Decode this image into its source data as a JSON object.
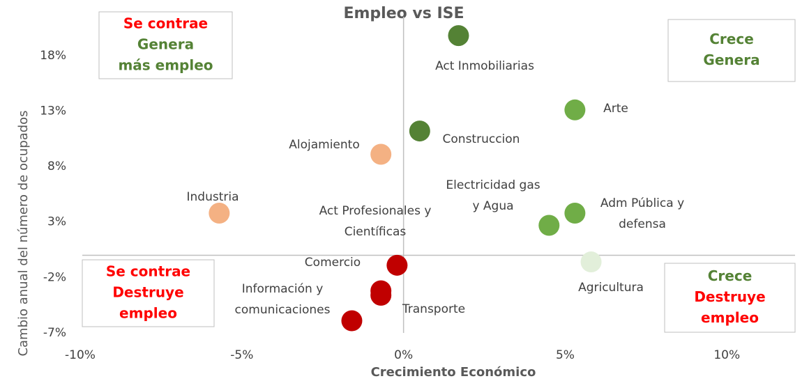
{
  "chart_data": {
    "type": "scatter",
    "title": "Empleo vs ISE",
    "x_label": "Crecimiento Económico",
    "y_label": "Cambio anual del número de ocupados",
    "xlim": [
      -10,
      12
    ],
    "ylim": [
      -7,
      21.5
    ],
    "xticks": [
      {
        "value": -10,
        "label": "-10%"
      },
      {
        "value": -5,
        "label": "-5%"
      },
      {
        "value": 0,
        "label": "0%"
      },
      {
        "value": 5,
        "label": "5%"
      },
      {
        "value": 10,
        "label": "10%"
      }
    ],
    "yticks": [
      {
        "value": -7,
        "label": "-7%"
      },
      {
        "value": -2,
        "label": "-2%"
      },
      {
        "value": 3,
        "label": "3%"
      },
      {
        "value": 8,
        "label": "8%"
      },
      {
        "value": 13,
        "label": "13%"
      },
      {
        "value": 18,
        "label": "18%"
      }
    ],
    "points": [
      {
        "label": [
          "Act Inmobiliarias"
        ],
        "x": 1.7,
        "y": 19.8,
        "color": "#548235"
      },
      {
        "label": [
          "Arte"
        ],
        "x": 5.3,
        "y": 13.1,
        "color": "#70ad47"
      },
      {
        "label": [
          "Construccion"
        ],
        "x": 0.5,
        "y": 11.2,
        "color": "#548235"
      },
      {
        "label": [
          "Alojamiento"
        ],
        "x": -0.7,
        "y": 9.1,
        "color": "#f4b183"
      },
      {
        "label": [
          "Industria"
        ],
        "x": -5.7,
        "y": 3.8,
        "color": "#f4b183"
      },
      {
        "label": [
          "Electricidad gas",
          "y Agua"
        ],
        "x": 4.5,
        "y": 2.7,
        "color": "#70ad47"
      },
      {
        "label": [
          "Act Profesionales y",
          "Científicas"
        ],
        "x": -0.7,
        "y": -3.2,
        "color": "#c00000"
      },
      {
        "label": [
          "Adm Pública y",
          "defensa"
        ],
        "x": 5.3,
        "y": 3.8,
        "color": "#70ad47"
      },
      {
        "label": [
          "Agricultura"
        ],
        "x": 5.8,
        "y": -0.6,
        "color": "#e2efda"
      },
      {
        "label": [
          "Comercio"
        ],
        "x": -0.2,
        "y": -0.9,
        "color": "#c00000"
      },
      {
        "label": [
          "Información y",
          "comunicaciones"
        ],
        "x": -1.6,
        "y": -5.9,
        "color": "#c00000"
      },
      {
        "label": [
          "Transporte"
        ],
        "x": -0.7,
        "y": -3.6,
        "color": "#c00000"
      }
    ],
    "quadrants": [
      {
        "lines": [
          {
            "text": "Se contrae",
            "color": "#ff0000"
          },
          {
            "text": "Genera",
            "color": "#548235"
          },
          {
            "text": "más empleo",
            "color": "#548235"
          }
        ]
      },
      {
        "lines": [
          {
            "text": "Crece",
            "color": "#548235"
          },
          {
            "text": "Genera",
            "color": "#548235"
          }
        ]
      },
      {
        "lines": [
          {
            "text": "Se contrae",
            "color": "#ff0000"
          },
          {
            "text": "Destruye",
            "color": "#ff0000"
          },
          {
            "text": "empleo",
            "color": "#ff0000"
          }
        ]
      },
      {
        "lines": [
          {
            "text": "Crece",
            "color": "#548235"
          },
          {
            "text": "Destruye",
            "color": "#ff0000"
          },
          {
            "text": "empleo",
            "color": "#ff0000"
          }
        ]
      }
    ]
  }
}
